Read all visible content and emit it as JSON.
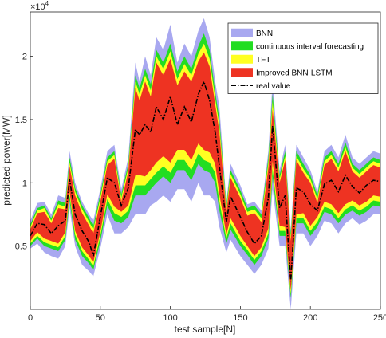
{
  "chart_data": {
    "type": "area",
    "xlabel": "test sample[N]",
    "ylabel": "predicted power[MW]",
    "y_multiplier": "×10",
    "y_multiplier_exp": "4",
    "xlim": [
      0,
      250
    ],
    "ylim": [
      0,
      23500
    ],
    "xticks": [
      0,
      50,
      100,
      150,
      200,
      250
    ],
    "yticks": [
      0.5,
      1,
      1.5,
      2
    ],
    "ytick_scale": 10000,
    "ytick_labels": [
      "0.5",
      "1",
      "1.5",
      "2"
    ],
    "grid": false,
    "legend_position": "top-right",
    "x": [
      0,
      5,
      10,
      15,
      20,
      25,
      28,
      32,
      37,
      42,
      45,
      50,
      55,
      60,
      65,
      70,
      75,
      78,
      82,
      86,
      90,
      95,
      100,
      105,
      110,
      115,
      120,
      124,
      128,
      132,
      135,
      140,
      143,
      150,
      155,
      160,
      165,
      170,
      173,
      178,
      182,
      186,
      190,
      195,
      200,
      205,
      210,
      215,
      220,
      225,
      230,
      235,
      240,
      245,
      250
    ],
    "series": [
      {
        "name": "BNN",
        "color": "#a8a8f0",
        "upper": [
          7000,
          8400,
          8500,
          7500,
          9000,
          8800,
          12500,
          10000,
          8500,
          7500,
          7000,
          9500,
          12500,
          13000,
          9500,
          12000,
          19500,
          18000,
          20000,
          18500,
          21500,
          20500,
          22500,
          19500,
          21000,
          20000,
          22000,
          23000,
          21500,
          18000,
          16000,
          8500,
          11500,
          9800,
          8300,
          8500,
          7800,
          12500,
          18000,
          11000,
          13000,
          6300,
          13000,
          12000,
          11000,
          9300,
          12500,
          13000,
          12000,
          13800,
          12000,
          11500,
          12000,
          12500,
          12300
        ],
        "lower": [
          4800,
          5200,
          4500,
          4200,
          4000,
          5000,
          8000,
          5000,
          3500,
          3000,
          2600,
          4800,
          7500,
          6000,
          6000,
          6500,
          7500,
          7500,
          7500,
          8200,
          8500,
          9000,
          8500,
          9500,
          9500,
          8500,
          10000,
          9000,
          9000,
          8500,
          6500,
          4500,
          5500,
          4200,
          3500,
          2800,
          3500,
          4800,
          9500,
          5000,
          5000,
          0,
          6000,
          6000,
          5000,
          5800,
          7000,
          6800,
          6000,
          6800,
          7200,
          6700,
          7000,
          7500,
          7500
        ]
      },
      {
        "name": "continuous interval forecasting",
        "color": "#22dd22",
        "upper": [
          6700,
          8000,
          8200,
          7200,
          8600,
          8400,
          12000,
          9600,
          8200,
          7200,
          6600,
          9100,
          12000,
          12500,
          9100,
          11500,
          18500,
          17500,
          19000,
          17800,
          20500,
          19500,
          21000,
          18800,
          20000,
          19000,
          20800,
          21800,
          20500,
          17200,
          15000,
          8200,
          11000,
          9400,
          8000,
          8200,
          7500,
          12000,
          17000,
          10600,
          12500,
          6000,
          12500,
          11500,
          10600,
          9000,
          12000,
          12500,
          11500,
          13200,
          11500,
          11000,
          11500,
          12000,
          11800
        ],
        "lower": [
          5000,
          5600,
          5000,
          4800,
          4600,
          5500,
          8600,
          5500,
          4200,
          3600,
          3100,
          5400,
          8200,
          7000,
          6800,
          7300,
          9000,
          9000,
          9000,
          9500,
          10000,
          10500,
          10000,
          11000,
          11000,
          10200,
          11500,
          11000,
          10800,
          10000,
          7800,
          5200,
          6300,
          5000,
          4300,
          3500,
          4200,
          5600,
          10500,
          5800,
          5800,
          900,
          6800,
          6800,
          5800,
          6500,
          7700,
          7500,
          6800,
          7500,
          7800,
          7400,
          7700,
          8200,
          8100
        ]
      },
      {
        "name": "TFT",
        "color": "#ffff22",
        "upper": [
          6500,
          7800,
          8000,
          7000,
          8300,
          8100,
          11600,
          9300,
          7900,
          6900,
          6300,
          8800,
          11700,
          12200,
          8800,
          11200,
          18000,
          17000,
          18500,
          17300,
          20000,
          19000,
          20400,
          18200,
          19400,
          18500,
          20200,
          21000,
          19800,
          16700,
          14500,
          7900,
          10700,
          9100,
          7700,
          7900,
          7200,
          11600,
          16400,
          10300,
          12100,
          5700,
          12100,
          11100,
          10300,
          8700,
          11700,
          12200,
          11200,
          12800,
          11200,
          10700,
          11200,
          11700,
          11500
        ],
        "lower": [
          5200,
          5800,
          5300,
          5100,
          4900,
          5800,
          9000,
          5900,
          4600,
          3900,
          3400,
          5800,
          8700,
          7600,
          7300,
          7800,
          9800,
          9800,
          9800,
          10300,
          10800,
          11300,
          10800,
          11800,
          11800,
          11000,
          12300,
          11800,
          11600,
          10800,
          8500,
          5600,
          6800,
          5400,
          4700,
          3900,
          4600,
          6000,
          11100,
          6200,
          6200,
          1200,
          7200,
          7200,
          6200,
          6900,
          8100,
          7900,
          7200,
          7900,
          8200,
          7800,
          8100,
          8600,
          8500
        ]
      },
      {
        "name": "Improved BNN-LSTM",
        "color": "#ee3322",
        "upper": [
          6300,
          7600,
          7700,
          6800,
          8000,
          7900,
          11300,
          9000,
          7600,
          6600,
          6000,
          8500,
          11400,
          11900,
          8500,
          10900,
          17500,
          16500,
          18000,
          16800,
          19500,
          18500,
          19800,
          17700,
          18800,
          18000,
          19600,
          20300,
          19200,
          16200,
          14000,
          7600,
          10400,
          8800,
          7400,
          7600,
          6900,
          11200,
          15800,
          10000,
          11800,
          5400,
          11800,
          10800,
          10000,
          8400,
          11400,
          11900,
          10900,
          12500,
          10900,
          10400,
          10900,
          11400,
          11200
        ],
        "lower": [
          5400,
          6100,
          5600,
          5400,
          5200,
          6100,
          9300,
          6200,
          4900,
          4200,
          3700,
          6100,
          9100,
          8100,
          7700,
          8200,
          10600,
          10600,
          10500,
          11000,
          11600,
          12100,
          11600,
          12600,
          12600,
          11800,
          13100,
          12600,
          12400,
          11500,
          9100,
          5900,
          7200,
          5800,
          5000,
          4200,
          4900,
          6400,
          11700,
          6600,
          6500,
          1500,
          7500,
          7600,
          6600,
          7300,
          8500,
          8300,
          7600,
          8300,
          8600,
          8200,
          8500,
          9000,
          8900
        ]
      },
      {
        "name": "real value",
        "color": "#000000",
        "values": [
          5800,
          6800,
          6700,
          6000,
          6600,
          7000,
          10300,
          7500,
          6200,
          5300,
          4200,
          7300,
          10400,
          10000,
          8200,
          9600,
          14200,
          13800,
          14600,
          14000,
          16000,
          15000,
          16800,
          14600,
          16000,
          14800,
          17000,
          18000,
          16500,
          14000,
          11300,
          6900,
          8900,
          7300,
          6100,
          5200,
          5800,
          8800,
          14500,
          8000,
          9000,
          2200,
          9600,
          9300,
          8300,
          7800,
          9900,
          10200,
          9300,
          10600,
          9700,
          9200,
          9800,
          10200,
          10100
        ]
      }
    ]
  }
}
